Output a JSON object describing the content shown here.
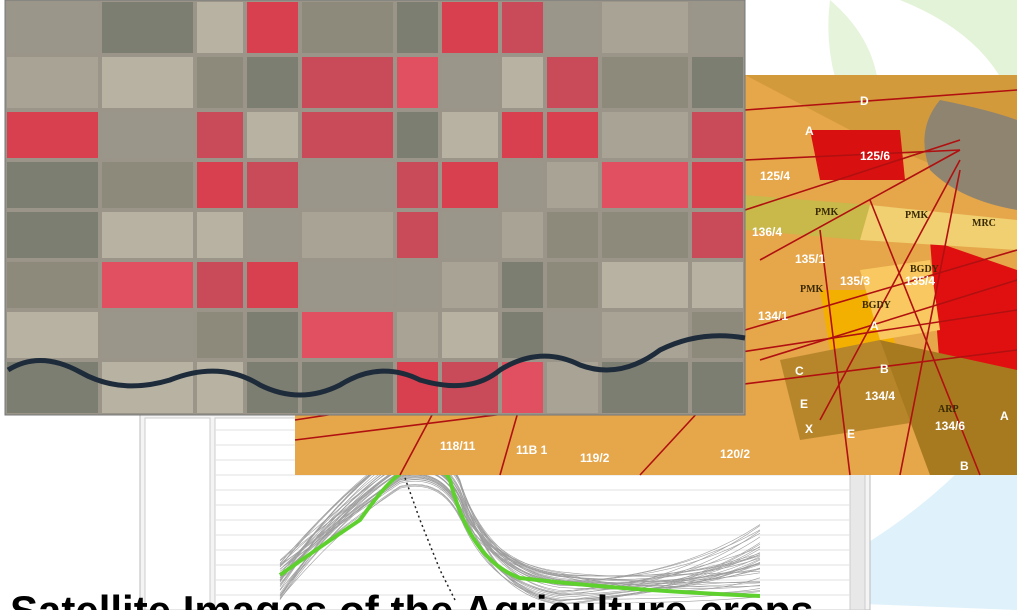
{
  "heading": "Satellite Images of the Agriculture crops",
  "map_labels": [
    "D",
    "A",
    "125/6",
    "125/4",
    "PMK",
    "PMK",
    "MRC",
    "136/4",
    "135/1",
    "135/3",
    "135/4",
    "BGDY",
    "BGDY",
    "134/1",
    "A",
    "C",
    "B",
    "E",
    "X",
    "E",
    "134/4",
    "ARP",
    "134/6",
    "118/11",
    "11B 1",
    "119/2",
    "120/2",
    "PMK",
    "B",
    "A"
  ]
}
